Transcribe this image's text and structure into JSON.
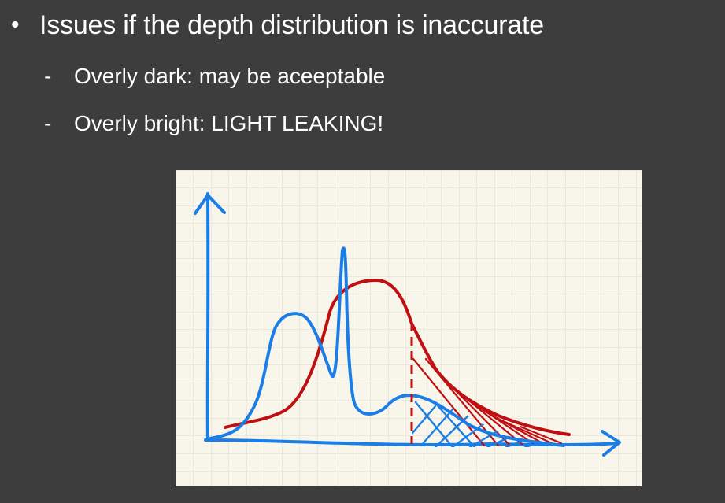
{
  "bullet": {
    "marker": "•",
    "text": "Issues if the depth distribution is inaccurate"
  },
  "sub_items": [
    {
      "marker": "-",
      "text": "Overly dark: may be aceeptable"
    },
    {
      "marker": "-",
      "text": "Overly bright: LIGHT LEAKING!"
    }
  ],
  "colors": {
    "background": "#3d3d3d",
    "paper": "#f8f5ea",
    "grid": "#dddad0",
    "blue": "#1a7ee6",
    "red": "#c00f12"
  }
}
